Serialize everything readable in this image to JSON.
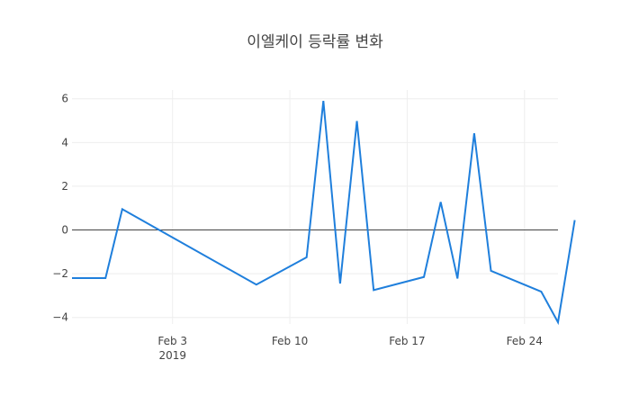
{
  "chart_data": {
    "type": "line",
    "title": "이엘케이 등락률 변화",
    "xlabel": "",
    "ylabel": "",
    "x_ticks": [
      {
        "date": "2019-02-03",
        "label": "Feb 3",
        "sublabel": "2019"
      },
      {
        "date": "2019-02-10",
        "label": "Feb 10",
        "sublabel": ""
      },
      {
        "date": "2019-02-17",
        "label": "Feb 17",
        "sublabel": ""
      },
      {
        "date": "2019-02-24",
        "label": "Feb 24",
        "sublabel": ""
      }
    ],
    "y_ticks": [
      -4,
      -2,
      0,
      2,
      4,
      6
    ],
    "y_tick_labels": [
      "−4",
      "−2",
      "0",
      "2",
      "4",
      "6"
    ],
    "xlim": [
      "2019-01-28",
      "2019-02-26"
    ],
    "ylim": [
      -4.3,
      6.4
    ],
    "grid": true,
    "zero_line": true,
    "series": [
      {
        "color": "#1f7fdc",
        "x": [
          "2019-01-28",
          "2019-01-30",
          "2019-01-31",
          "2019-02-08",
          "2019-02-11",
          "2019-02-12",
          "2019-02-13",
          "2019-02-14",
          "2019-02-15",
          "2019-02-18",
          "2019-02-19",
          "2019-02-20",
          "2019-02-21",
          "2019-02-22",
          "2019-02-25",
          "2019-02-26",
          "2019-02-27"
        ],
        "values": [
          -2.2,
          -2.2,
          0.95,
          -2.5,
          -1.25,
          5.9,
          -2.45,
          4.98,
          -2.75,
          -2.15,
          1.28,
          -2.22,
          4.42,
          -1.87,
          -2.82,
          -4.22,
          0.45
        ]
      }
    ]
  }
}
